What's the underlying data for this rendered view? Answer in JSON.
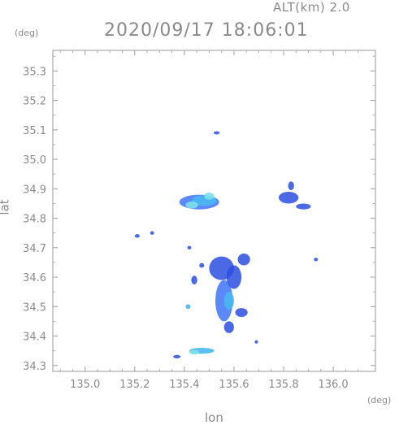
{
  "header": {
    "altitude_label": "ALT(km) 2.0",
    "timestamp": "2020/09/17 18:06:01"
  },
  "axes": {
    "y_unit": "(deg)",
    "x_unit": "(deg)",
    "xlabel": "lon",
    "ylabel": "lat"
  },
  "chart_data": {
    "type": "heatmap",
    "xlim": [
      134.87,
      136.17
    ],
    "ylim": [
      34.28,
      35.37
    ],
    "x_ticks": [
      135.0,
      135.2,
      135.4,
      135.6,
      135.8,
      136.0
    ],
    "x_tick_labels": [
      "135.0",
      "135.2",
      "135.4",
      "135.6",
      "135.8",
      "136.0"
    ],
    "y_ticks": [
      34.3,
      34.4,
      34.5,
      34.6,
      34.7,
      34.8,
      34.9,
      35.0,
      35.1,
      35.2,
      35.3
    ],
    "y_tick_labels": [
      "34.3",
      "34.4",
      "34.5",
      "34.6",
      "34.7",
      "34.8",
      "34.9",
      "35.0",
      "35.1",
      "35.2",
      "35.3"
    ],
    "grid": false,
    "colors": {
      "low": "#2b4fe0",
      "mid": "#4a7cf7",
      "high": "#49b8f0",
      "peak": "#7fe0ea"
    },
    "echo_cells": [
      {
        "lon": 135.46,
        "lat": 34.855,
        "rx": 0.08,
        "ry": 0.025,
        "level": "mid"
      },
      {
        "lon": 135.48,
        "lat": 34.86,
        "rx": 0.05,
        "ry": 0.018,
        "level": "high"
      },
      {
        "lon": 135.43,
        "lat": 34.845,
        "rx": 0.025,
        "ry": 0.012,
        "level": "peak"
      },
      {
        "lon": 135.5,
        "lat": 34.875,
        "rx": 0.02,
        "ry": 0.012,
        "level": "peak"
      },
      {
        "lon": 135.53,
        "lat": 35.09,
        "rx": 0.012,
        "ry": 0.005,
        "level": "low"
      },
      {
        "lon": 135.82,
        "lat": 34.87,
        "rx": 0.04,
        "ry": 0.02,
        "level": "low"
      },
      {
        "lon": 135.88,
        "lat": 34.84,
        "rx": 0.03,
        "ry": 0.01,
        "level": "low"
      },
      {
        "lon": 135.83,
        "lat": 34.91,
        "rx": 0.012,
        "ry": 0.015,
        "level": "low"
      },
      {
        "lon": 135.56,
        "lat": 34.52,
        "rx": 0.035,
        "ry": 0.07,
        "level": "mid"
      },
      {
        "lon": 135.55,
        "lat": 34.63,
        "rx": 0.05,
        "ry": 0.04,
        "level": "low"
      },
      {
        "lon": 135.58,
        "lat": 34.52,
        "rx": 0.02,
        "ry": 0.03,
        "level": "high"
      },
      {
        "lon": 135.6,
        "lat": 34.6,
        "rx": 0.03,
        "ry": 0.04,
        "level": "low"
      },
      {
        "lon": 135.64,
        "lat": 34.66,
        "rx": 0.025,
        "ry": 0.02,
        "level": "low"
      },
      {
        "lon": 135.63,
        "lat": 34.48,
        "rx": 0.025,
        "ry": 0.015,
        "level": "low"
      },
      {
        "lon": 135.58,
        "lat": 34.43,
        "rx": 0.02,
        "ry": 0.02,
        "level": "low"
      },
      {
        "lon": 135.47,
        "lat": 34.35,
        "rx": 0.05,
        "ry": 0.01,
        "level": "high"
      },
      {
        "lon": 135.44,
        "lat": 34.345,
        "rx": 0.02,
        "ry": 0.008,
        "level": "peak"
      },
      {
        "lon": 135.37,
        "lat": 34.33,
        "rx": 0.015,
        "ry": 0.006,
        "level": "low"
      },
      {
        "lon": 135.415,
        "lat": 34.5,
        "rx": 0.01,
        "ry": 0.008,
        "level": "high"
      },
      {
        "lon": 135.44,
        "lat": 34.59,
        "rx": 0.012,
        "ry": 0.015,
        "level": "low"
      },
      {
        "lon": 135.47,
        "lat": 34.64,
        "rx": 0.01,
        "ry": 0.008,
        "level": "low"
      },
      {
        "lon": 135.42,
        "lat": 34.7,
        "rx": 0.008,
        "ry": 0.006,
        "level": "low"
      },
      {
        "lon": 135.21,
        "lat": 34.74,
        "rx": 0.01,
        "ry": 0.006,
        "level": "low"
      },
      {
        "lon": 135.27,
        "lat": 34.75,
        "rx": 0.008,
        "ry": 0.006,
        "level": "low"
      },
      {
        "lon": 135.93,
        "lat": 34.66,
        "rx": 0.008,
        "ry": 0.006,
        "level": "low"
      },
      {
        "lon": 135.69,
        "lat": 34.38,
        "rx": 0.006,
        "ry": 0.006,
        "level": "low"
      }
    ]
  }
}
